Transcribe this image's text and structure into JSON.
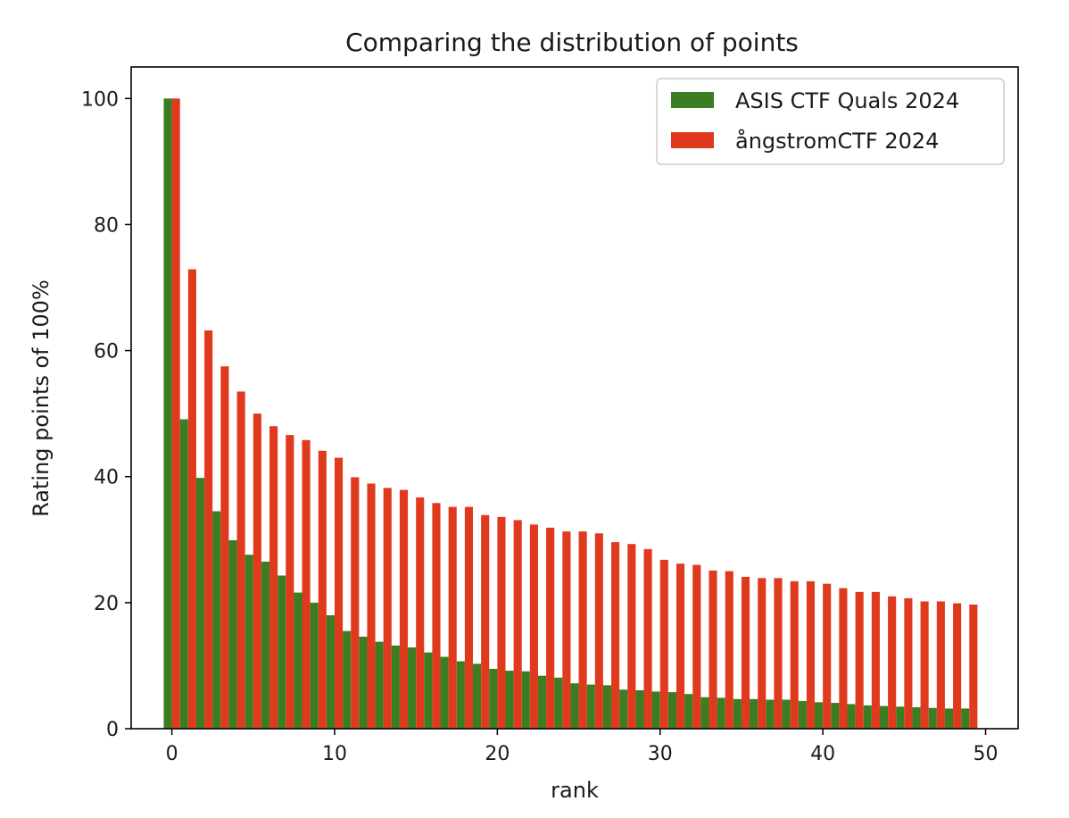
{
  "chart_data": {
    "type": "bar",
    "title": "Comparing the distribution of points",
    "xlabel": "rank",
    "ylabel": "Rating points of 100%",
    "xlim": [
      -2.5,
      52
    ],
    "ylim": [
      0,
      105
    ],
    "xticks": [
      0,
      10,
      20,
      30,
      40,
      50
    ],
    "yticks": [
      0,
      20,
      40,
      60,
      80,
      100
    ],
    "grid": false,
    "legend_position": "top-right",
    "x": [
      0,
      1,
      2,
      3,
      4,
      5,
      6,
      7,
      8,
      9,
      10,
      11,
      12,
      13,
      14,
      15,
      16,
      17,
      18,
      19,
      20,
      21,
      22,
      23,
      24,
      25,
      26,
      27,
      28,
      29,
      30,
      31,
      32,
      33,
      34,
      35,
      36,
      37,
      38,
      39,
      40,
      41,
      42,
      43,
      44,
      45,
      46,
      47,
      48,
      49
    ],
    "series": [
      {
        "name": "ASIS CTF Quals 2024",
        "color": "#3a7d22",
        "values": [
          100,
          49.1,
          39.8,
          34.5,
          29.9,
          27.6,
          26.5,
          24.3,
          21.6,
          20.0,
          18.0,
          15.5,
          14.6,
          13.8,
          13.2,
          12.9,
          12.1,
          11.4,
          10.7,
          10.3,
          9.5,
          9.2,
          9.1,
          8.4,
          8.1,
          7.2,
          7.0,
          6.9,
          6.2,
          6.1,
          5.9,
          5.8,
          5.5,
          5.0,
          4.9,
          4.7,
          4.7,
          4.6,
          4.6,
          4.4,
          4.2,
          4.1,
          3.9,
          3.7,
          3.6,
          3.5,
          3.4,
          3.3,
          3.2,
          3.2
        ]
      },
      {
        "name": "ångstromCTF 2024",
        "color": "#e03a1e",
        "values": [
          100,
          72.9,
          63.2,
          57.5,
          53.5,
          50.0,
          48.0,
          46.6,
          45.8,
          44.1,
          43.0,
          39.9,
          38.9,
          38.2,
          37.9,
          36.7,
          35.8,
          35.2,
          35.2,
          33.9,
          33.6,
          33.1,
          32.4,
          31.9,
          31.3,
          31.3,
          31.0,
          29.6,
          29.3,
          28.5,
          26.8,
          26.2,
          26.0,
          25.1,
          25.0,
          24.1,
          23.9,
          23.9,
          23.4,
          23.4,
          23.0,
          22.3,
          21.7,
          21.7,
          21.0,
          20.7,
          20.2,
          20.2,
          19.9,
          19.7
        ]
      }
    ]
  }
}
